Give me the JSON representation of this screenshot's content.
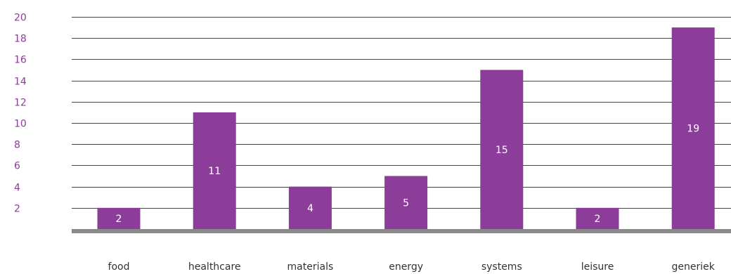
{
  "chart_data": {
    "type": "bar",
    "title": "",
    "xlabel": "",
    "ylabel": "",
    "categories": [
      "food",
      "healthcare",
      "materials",
      "energy",
      "systems",
      "leisure",
      "generiek"
    ],
    "values": [
      2,
      11,
      4,
      5,
      15,
      2,
      19
    ],
    "ylim": [
      0,
      20
    ],
    "yticks": [
      2,
      4,
      6,
      8,
      10,
      12,
      14,
      16,
      18,
      20
    ],
    "grid": true,
    "legend": "none",
    "data_labels": true
  },
  "colors": {
    "bar": "#8c3d99",
    "tick_label": "#8c3d99",
    "gridline": "#444444",
    "baseline": "#8a8a8a",
    "data_label": "#ffffff",
    "category_label": "#333333"
  }
}
